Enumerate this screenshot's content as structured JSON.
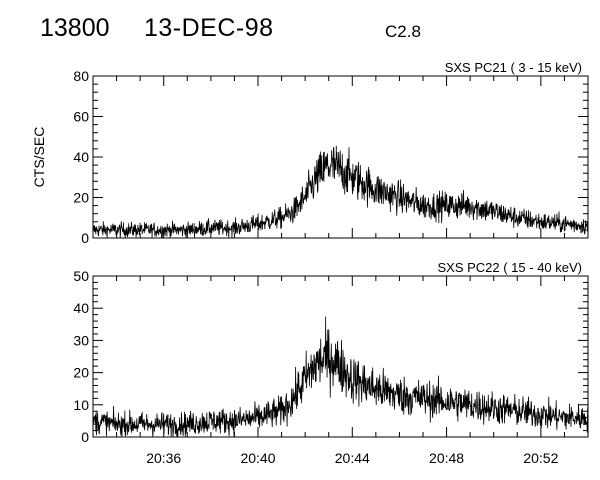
{
  "header": {
    "event_id": "13800",
    "date": "13-DEC-98",
    "goes_class": "C2.8"
  },
  "chart_data": [
    {
      "type": "line",
      "title": "SXS PC21  (  3 - 15 keV)",
      "ylabel": "CTS/SEC",
      "xlabel": "",
      "x_unit": "minutes UT",
      "xlim": [
        "20:33",
        "20:54"
      ],
      "x_ticks": [
        "20:36",
        "20:40",
        "20:44",
        "20:48",
        "20:52"
      ],
      "ylim": [
        0,
        80
      ],
      "y_ticks": [
        "0",
        "20",
        "40",
        "60",
        "80"
      ],
      "grid": false,
      "series": [
        {
          "x": [
            "20:33",
            "20:34",
            "20:35",
            "20:36",
            "20:37",
            "20:38",
            "20:39",
            "20:40",
            "20:41",
            "20:41.5",
            "20:42",
            "20:42.5",
            "20:43",
            "20:43.5",
            "20:44",
            "20:45",
            "20:46",
            "20:47",
            "20:48",
            "20:49",
            "20:50",
            "20:51",
            "20:52",
            "20:53",
            "20:54"
          ],
          "values": [
            4,
            4,
            4,
            4,
            4,
            5,
            5,
            7,
            10,
            13,
            20,
            30,
            36,
            34,
            30,
            24,
            20,
            16,
            16,
            16,
            13,
            10,
            8,
            7,
            6
          ]
        }
      ]
    },
    {
      "type": "line",
      "title": "SXS PC22  ( 15 - 40 keV)",
      "ylabel": "",
      "xlabel": "",
      "x_unit": "minutes UT",
      "xlim": [
        "20:33",
        "20:54"
      ],
      "x_ticks": [
        "20:36",
        "20:40",
        "20:44",
        "20:48",
        "20:52"
      ],
      "ylim": [
        0,
        50
      ],
      "y_ticks": [
        "0",
        "10",
        "20",
        "30",
        "40",
        "50"
      ],
      "grid": false,
      "series": [
        {
          "x": [
            "20:33",
            "20:34",
            "20:35",
            "20:36",
            "20:37",
            "20:38",
            "20:39",
            "20:40",
            "20:41",
            "20:41.5",
            "20:42",
            "20:42.5",
            "20:43",
            "20:43.5",
            "20:44",
            "20:45",
            "20:46",
            "20:47",
            "20:48",
            "20:49",
            "20:50",
            "20:51",
            "20:52",
            "20:53",
            "20:54"
          ],
          "values": [
            5,
            4,
            4,
            4,
            4,
            5,
            5,
            6,
            8,
            12,
            18,
            23,
            25,
            22,
            18,
            15,
            13,
            12,
            11,
            10,
            9,
            8,
            7,
            6,
            6
          ]
        }
      ]
    }
  ]
}
